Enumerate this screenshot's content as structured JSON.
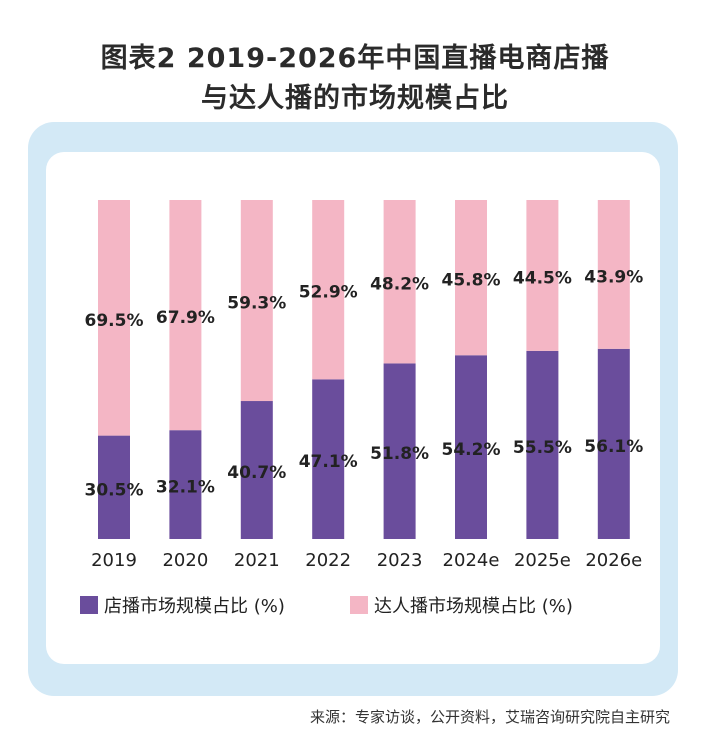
{
  "title_line1": "图表2  2019-2026年中国直播电商店播",
  "title_line2": "与达人播的市场规模占比",
  "source": "来源：专家访谈，公开资料，艾瑞咨询研究院自主研究",
  "colors": {
    "store": "#6a4d9c",
    "influencer": "#f4b6c5",
    "frame": "#d3e9f6"
  },
  "chart_data": {
    "type": "bar",
    "stacked": true,
    "categories": [
      "2019",
      "2020",
      "2021",
      "2022",
      "2023",
      "2024e",
      "2025e",
      "2026e"
    ],
    "series": [
      {
        "name": "店播市场规模占比 (%)",
        "values": [
          30.5,
          32.1,
          40.7,
          47.1,
          51.8,
          54.2,
          55.5,
          56.1
        ],
        "labels": [
          "30.5%",
          "32.1%",
          "40.7%",
          "47.1%",
          "51.8%",
          "54.2%",
          "55.5%",
          "56.1%"
        ]
      },
      {
        "name": "达人播市场规模占比 (%)",
        "values": [
          69.5,
          67.9,
          59.3,
          52.9,
          48.2,
          45.8,
          44.5,
          43.9
        ],
        "labels": [
          "69.5%",
          "67.9%",
          "59.3%",
          "52.9%",
          "48.2%",
          "45.8%",
          "44.5%",
          "43.9%"
        ]
      }
    ],
    "ylim": [
      0,
      100
    ],
    "grid": false,
    "legend_position": "bottom"
  }
}
